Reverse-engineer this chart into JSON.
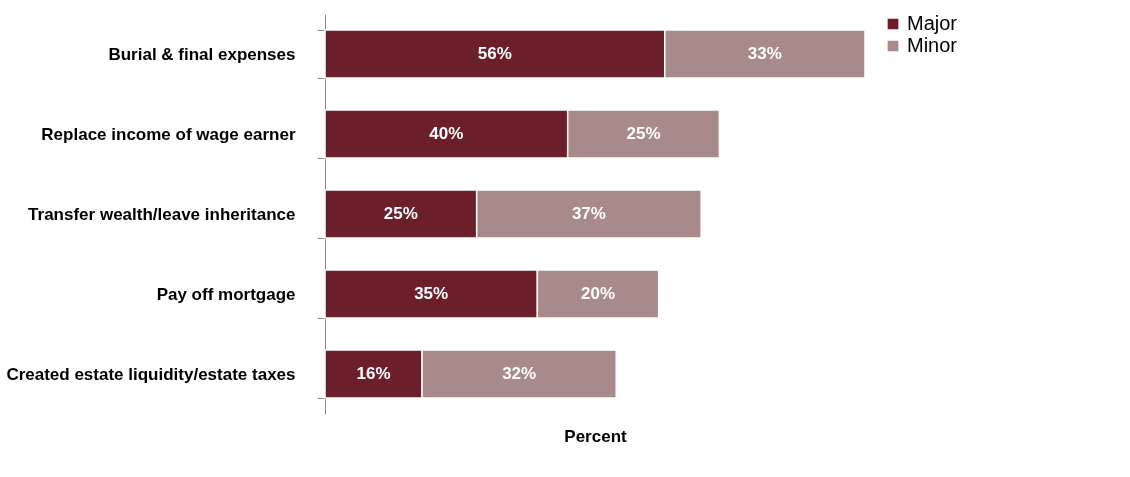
{
  "chart_data": {
    "type": "bar",
    "orientation": "horizontal",
    "stacked": true,
    "xlabel": "Percent",
    "tick_labels": "y",
    "grid": false,
    "legend": "right",
    "categories": [
      "Burial & final expenses",
      "Replace income of wage earner",
      "Transfer wealth/leave inheritance",
      "Pay off mortgage",
      "Created estate liquidity/estate taxes"
    ],
    "series": [
      {
        "name": "Major",
        "color": "#6b1f2a",
        "values": [
          56,
          40,
          25,
          35,
          16
        ],
        "value_labels": [
          "56%",
          "40%",
          "25%",
          "35%",
          "16%"
        ]
      },
      {
        "name": "Minor",
        "color": "#a88a8a",
        "values": [
          33,
          25,
          37,
          20,
          32
        ],
        "value_labels": [
          "33%",
          "25%",
          "37%",
          "20%",
          "32%"
        ]
      }
    ]
  }
}
